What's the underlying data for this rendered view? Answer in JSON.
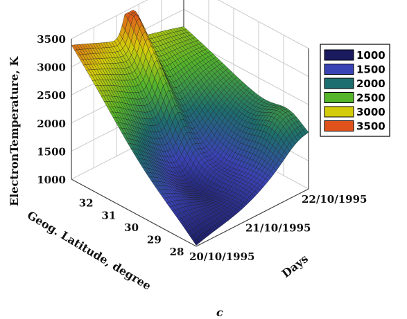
{
  "chart_data": {
    "type": "surface",
    "panel_label": "c",
    "zlabel": "ElectronTemperature, K",
    "xlabel": "Geog. Latitude, degree",
    "ylabel": "Days",
    "z_ticks": [
      "1000",
      "1500",
      "2000",
      "2500",
      "3000",
      "3500"
    ],
    "x_ticks": [
      "32",
      "31",
      "30",
      "29",
      "28"
    ],
    "y_ticks": [
      "20/10/1995",
      "21/10/1995",
      "22/10/1995"
    ],
    "zlim": [
      1000,
      3500
    ],
    "xlim": [
      27.5,
      33
    ],
    "legend": {
      "position": "right",
      "entries": [
        {
          "label": "1000",
          "color": "#1a1a5e"
        },
        {
          "label": "1500",
          "color": "#3a43b4"
        },
        {
          "label": "2000",
          "color": "#1d6e6e"
        },
        {
          "label": "2500",
          "color": "#55b52a"
        },
        {
          "label": "3000",
          "color": "#d4cc0a"
        },
        {
          "label": "3500",
          "color": "#e0521b"
        }
      ]
    },
    "corner_values": {
      "lat33_day20": 3400,
      "lat28_day20": 1050,
      "lat28_day22": 1950,
      "lat33_day22": 2700,
      "minimum": 1000,
      "maximum": 3450
    }
  }
}
